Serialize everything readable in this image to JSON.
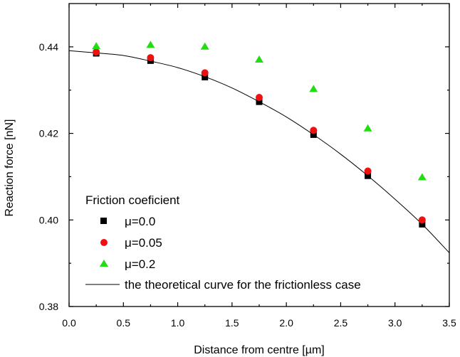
{
  "chart_data": {
    "type": "scatter",
    "xlabel": "Distance from centre [µm]",
    "ylabel": "Reaction force [nN]",
    "xlim": [
      0.0,
      3.5
    ],
    "ylim": [
      0.38,
      0.45
    ],
    "x_ticks": [
      0.0,
      0.5,
      1.0,
      1.5,
      2.0,
      2.5,
      3.0,
      3.5
    ],
    "x_tick_labels": [
      "0.0",
      "0.5",
      "1.0",
      "1.5",
      "2.0",
      "2.5",
      "3.0",
      "3.5"
    ],
    "y_ticks": [
      0.38,
      0.4,
      0.42,
      0.44
    ],
    "y_tick_labels": [
      "0.38",
      "0.40",
      "0.42",
      "0.44"
    ],
    "y_minor_ticks": [
      0.39,
      0.41,
      0.43
    ],
    "grid": false,
    "legend": {
      "title": "Friction coeficient",
      "placement": "bottom-left"
    },
    "series": [
      {
        "name": "μ=0.0",
        "marker": "square",
        "color": "#000000",
        "x": [
          0.25,
          0.75,
          1.25,
          1.75,
          2.25,
          2.75,
          3.25
        ],
        "y": [
          0.4385,
          0.4368,
          0.433,
          0.4273,
          0.4197,
          0.4102,
          0.399
        ]
      },
      {
        "name": "μ=0.05",
        "marker": "circle",
        "color": "#ee1111",
        "x": [
          0.25,
          0.75,
          1.25,
          1.75,
          2.25,
          2.75,
          3.25
        ],
        "y": [
          0.4388,
          0.4375,
          0.434,
          0.4283,
          0.4207,
          0.4113,
          0.4
        ]
      },
      {
        "name": "μ=0.2",
        "marker": "triangle",
        "color": "#22dd11",
        "x": [
          0.25,
          0.75,
          1.25,
          1.75,
          2.25,
          2.75,
          3.25
        ],
        "y": [
          0.4402,
          0.4405,
          0.4401,
          0.4371,
          0.4303,
          0.4212,
          0.4099
        ]
      }
    ],
    "curve": {
      "name": "the theoretical curve for the frictionless case",
      "type": "line",
      "color": "#000000",
      "x": [
        0.0,
        0.25,
        0.5,
        0.75,
        1.0,
        1.25,
        1.5,
        1.75,
        2.0,
        2.25,
        2.5,
        2.75,
        3.0,
        3.25,
        3.5
      ],
      "y": [
        0.4391,
        0.4386,
        0.438,
        0.4367,
        0.4352,
        0.4331,
        0.4305,
        0.4273,
        0.4238,
        0.4197,
        0.4152,
        0.4102,
        0.4048,
        0.399,
        0.3924
      ]
    }
  }
}
